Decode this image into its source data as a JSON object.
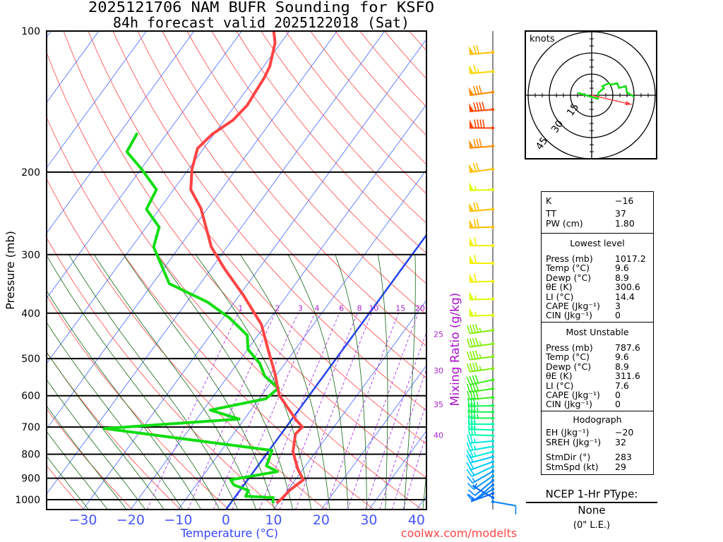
{
  "title": {
    "line1": "2025121706 NAM BUFR Sounding for KSFO",
    "line2": "84h forecast valid 2025122018 (Sat)"
  },
  "credit": "coolwx.com/modelts",
  "colors": {
    "temperature": "#ff4444",
    "dewpoint": "#11dd11",
    "isotherm": "#4466ff",
    "freezing_isotherm": "#2244ee",
    "dry_adiabat": "#ff4444",
    "moist_adiabat": "#116611",
    "mixing_ratio": "#aa33ee",
    "storm_motion": "#ff4444"
  },
  "chart_data": {
    "type": "line",
    "subtype": "skew-t log-p",
    "title": [
      "2025121706 NAM BUFR Sounding for KSFO",
      "84h forecast valid 2025122018 (Sat)"
    ],
    "xlabel": "Temperature (°C)",
    "ylabel": "Pressure (mb)",
    "right_label": "Mixing Ratio (g/kg)",
    "ylim": [
      1050,
      100
    ],
    "pressure_ticks": [
      100,
      200,
      300,
      400,
      500,
      600,
      700,
      800,
      900,
      1000
    ],
    "temperature_ticks": [
      -30,
      -20,
      -10,
      0,
      10,
      20,
      30,
      40
    ],
    "mixing_ratio_lines": [
      1,
      2,
      3,
      4,
      6,
      8,
      10,
      15,
      20,
      25,
      30,
      35,
      40
    ],
    "grid": true,
    "temperature_profile": [
      [
        1017,
        9.6
      ],
      [
        990,
        10.1
      ],
      [
        956,
        10.4
      ],
      [
        907,
        11.7
      ],
      [
        861,
        8.9
      ],
      [
        790,
        5.2
      ],
      [
        724,
        3.0
      ],
      [
        700,
        3.4
      ],
      [
        676,
        1.0
      ],
      [
        642,
        -2.1
      ],
      [
        598,
        -6.4
      ],
      [
        540,
        -10.4
      ],
      [
        478,
        -15.7
      ],
      [
        423,
        -20.9
      ],
      [
        368,
        -28.9
      ],
      [
        321,
        -37.3
      ],
      [
        289,
        -43.3
      ],
      [
        239,
        -51.4
      ],
      [
        218,
        -56.4
      ],
      [
        197,
        -59.3
      ],
      [
        178,
        -61.3
      ],
      [
        166,
        -60.4
      ],
      [
        155,
        -58.2
      ],
      [
        144,
        -57.5
      ],
      [
        135,
        -57.8
      ],
      [
        126,
        -58.1
      ],
      [
        119,
        -58.7
      ],
      [
        106,
        -61.2
      ],
      [
        100,
        -63.3
      ]
    ],
    "dewpoint_profile": [
      [
        1017,
        8.9
      ],
      [
        990,
        8.1
      ],
      [
        983,
        2.1
      ],
      [
        956,
        1.8
      ],
      [
        930,
        -2.1
      ],
      [
        907,
        -3.6
      ],
      [
        871,
        5.0
      ],
      [
        847,
        1.8
      ],
      [
        804,
        1.0
      ],
      [
        785,
        0.6
      ],
      [
        705,
        -37.9
      ],
      [
        673,
        -11.1
      ],
      [
        644,
        -18.5
      ],
      [
        609,
        -8.6
      ],
      [
        578,
        -7.6
      ],
      [
        545,
        -12.3
      ],
      [
        512,
        -15.3
      ],
      [
        478,
        -19.9
      ],
      [
        446,
        -22.2
      ],
      [
        409,
        -28.7
      ],
      [
        379,
        -35.6
      ],
      [
        346,
        -46.5
      ],
      [
        289,
        -55.4
      ],
      [
        262,
        -57.3
      ],
      [
        240,
        -62.7
      ],
      [
        218,
        -63.6
      ],
      [
        197,
        -69.9
      ],
      [
        181,
        -75.6
      ],
      [
        165,
        -76.3
      ]
    ],
    "winds": [
      {
        "p": 111,
        "dir": 265,
        "spd": 70
      },
      {
        "p": 122,
        "dir": 265,
        "spd": 65
      },
      {
        "p": 135,
        "dir": 262,
        "spd": 80
      },
      {
        "p": 147,
        "dir": 265,
        "spd": 90
      },
      {
        "p": 161,
        "dir": 270,
        "spd": 90
      },
      {
        "p": 176,
        "dir": 265,
        "spd": 80
      },
      {
        "p": 197,
        "dir": 262,
        "spd": 70
      },
      {
        "p": 218,
        "dir": 268,
        "spd": 55
      },
      {
        "p": 240,
        "dir": 265,
        "spd": 70
      },
      {
        "p": 262,
        "dir": 268,
        "spd": 70
      },
      {
        "p": 287,
        "dir": 270,
        "spd": 60
      },
      {
        "p": 313,
        "dir": 270,
        "spd": 60
      },
      {
        "p": 342,
        "dir": 268,
        "spd": 60
      },
      {
        "p": 373,
        "dir": 268,
        "spd": 55
      },
      {
        "p": 404,
        "dir": 268,
        "spd": 55
      },
      {
        "p": 435,
        "dir": 262,
        "spd": 45
      },
      {
        "p": 465,
        "dir": 262,
        "spd": 45
      },
      {
        "p": 495,
        "dir": 262,
        "spd": 45
      },
      {
        "p": 525,
        "dir": 262,
        "spd": 45
      },
      {
        "p": 555,
        "dir": 258,
        "spd": 40
      },
      {
        "p": 580,
        "dir": 262,
        "spd": 40
      },
      {
        "p": 605,
        "dir": 265,
        "spd": 40
      },
      {
        "p": 630,
        "dir": 268,
        "spd": 35
      },
      {
        "p": 650,
        "dir": 270,
        "spd": 35
      },
      {
        "p": 670,
        "dir": 270,
        "spd": 35
      },
      {
        "p": 690,
        "dir": 270,
        "spd": 30
      },
      {
        "p": 710,
        "dir": 272,
        "spd": 30
      },
      {
        "p": 730,
        "dir": 272,
        "spd": 30
      },
      {
        "p": 750,
        "dir": 265,
        "spd": 25
      },
      {
        "p": 770,
        "dir": 260,
        "spd": 25
      },
      {
        "p": 790,
        "dir": 255,
        "spd": 25
      },
      {
        "p": 810,
        "dir": 255,
        "spd": 20
      },
      {
        "p": 830,
        "dir": 250,
        "spd": 20
      },
      {
        "p": 850,
        "dir": 245,
        "spd": 20
      },
      {
        "p": 870,
        "dir": 240,
        "spd": 15
      },
      {
        "p": 890,
        "dir": 235,
        "spd": 15
      },
      {
        "p": 910,
        "dir": 230,
        "spd": 10
      },
      {
        "p": 930,
        "dir": 230,
        "spd": 10
      },
      {
        "p": 950,
        "dir": 240,
        "spd": 10
      },
      {
        "p": 970,
        "dir": 250,
        "spd": 5
      },
      {
        "p": 990,
        "dir": 300,
        "spd": 5
      },
      {
        "p": 1010,
        "dir": 100,
        "spd": 10
      }
    ],
    "wind_colorscale": [
      [
        5,
        "#0066ff"
      ],
      [
        15,
        "#0099ff"
      ],
      [
        22,
        "#00ddff"
      ],
      [
        30,
        "#00ffaa"
      ],
      [
        38,
        "#22ee22"
      ],
      [
        47,
        "#99ee00"
      ],
      [
        57,
        "#eeff00"
      ],
      [
        67,
        "#ffcc00"
      ],
      [
        78,
        "#ff9900"
      ],
      [
        90,
        "#ff4400"
      ]
    ]
  },
  "hodograph": {
    "units_label": "knots",
    "ring_labels": [
      "15",
      "30",
      "45"
    ]
  },
  "stats": {
    "indices": [
      {
        "label": "K",
        "value": "−16"
      },
      {
        "label": "TT",
        "value": "37"
      },
      {
        "label": "PW (cm)",
        "value": "1.80"
      }
    ],
    "lowest": {
      "title": "Lowest level",
      "rows": [
        {
          "label": "Press (mb)",
          "value": "1017.2"
        },
        {
          "label": "Temp (°C)",
          "value": "9.6"
        },
        {
          "label": "Dewp (°C)",
          "value": "8.9"
        },
        {
          "label": "θE (K)",
          "value": "300.6"
        },
        {
          "label": "LI (°C)",
          "value": "14.4"
        },
        {
          "label": "CAPE (Jkg⁻¹)",
          "value": "3"
        },
        {
          "label": "CIN (Jkg⁻¹)",
          "value": "0"
        }
      ]
    },
    "most_unstable": {
      "title": "Most Unstable",
      "rows": [
        {
          "label": "Press (mb)",
          "value": "787.6"
        },
        {
          "label": "Temp (°C)",
          "value": "9.6"
        },
        {
          "label": "Dewp (°C)",
          "value": "8.9"
        },
        {
          "label": "θE (K)",
          "value": "311.6"
        },
        {
          "label": "LI (°C)",
          "value": "7.6"
        },
        {
          "label": "CAPE (Jkg⁻¹)",
          "value": "0"
        },
        {
          "label": "CIN (Jkg⁻¹)",
          "value": "0"
        }
      ]
    },
    "hodograph": {
      "title": "Hodograph",
      "rows": [
        {
          "label": "EH (Jkg⁻¹)",
          "value": "−20"
        },
        {
          "label": "SREH (Jkg⁻¹)",
          "value": "32"
        },
        {
          "label": "StmDir (°)",
          "value": "283"
        },
        {
          "label": "StmSpd (kt)",
          "value": "29"
        }
      ],
      "storm_dir": 283,
      "storm_spd": 29
    }
  },
  "ptype": {
    "heading": "NCEP 1-Hr PType:",
    "value": "None",
    "accumulation": "(0\" L.E.)"
  }
}
